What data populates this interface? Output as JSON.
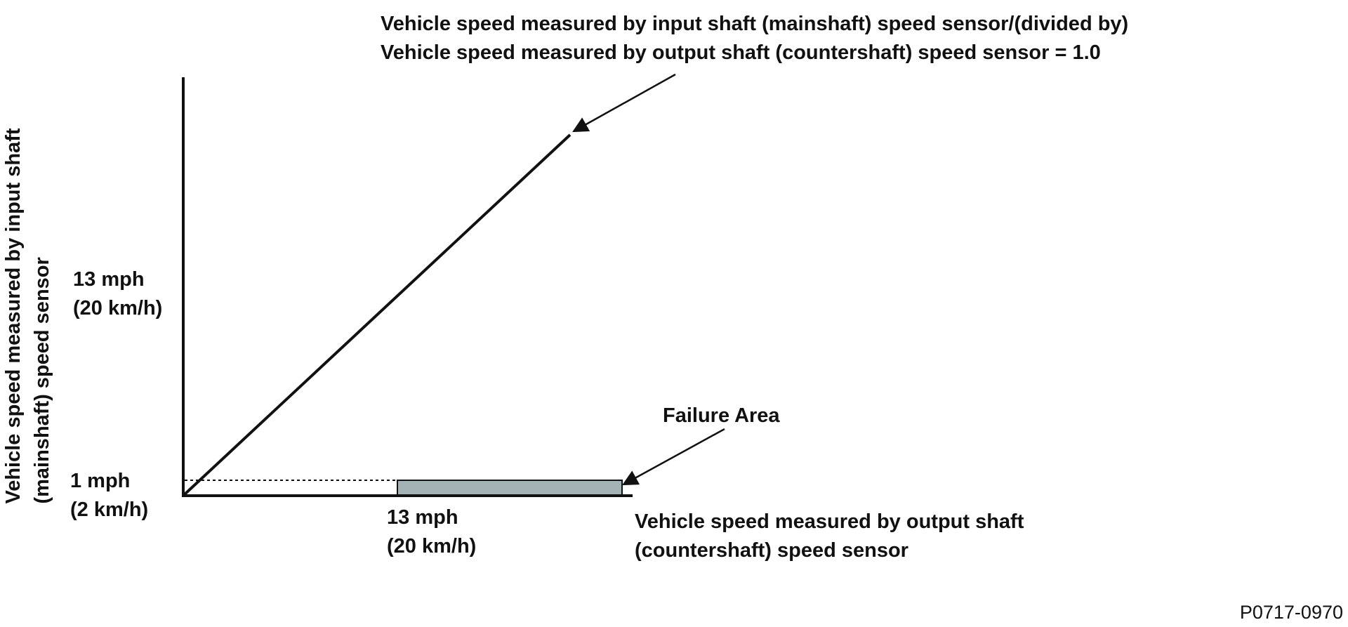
{
  "annotation_top": {
    "line1": "Vehicle speed measured by input shaft (mainshaft) speed sensor/(divided by)",
    "line2": "Vehicle speed measured by output shaft (countershaft) speed sensor = 1.0"
  },
  "y_axis_label": {
    "line1": "Vehicle speed measured by input shaft",
    "line2": "(mainshaft) speed sensor"
  },
  "y_ticks": [
    {
      "line1": "13 mph",
      "line2": "(20 km/h)"
    },
    {
      "line1": "1 mph",
      "line2": "(2 km/h)"
    }
  ],
  "x_tick": {
    "line1": "13 mph",
    "line2": "(20 km/h)"
  },
  "x_axis_label": {
    "line1": "Vehicle speed measured by output shaft",
    "line2": "(countershaft) speed sensor"
  },
  "failure_label": "Failure Area",
  "figure_code": "P0717-0970",
  "colors": {
    "ink": "#111111",
    "failure_fill": "#a3b2b5",
    "background": "#ffffff"
  }
}
